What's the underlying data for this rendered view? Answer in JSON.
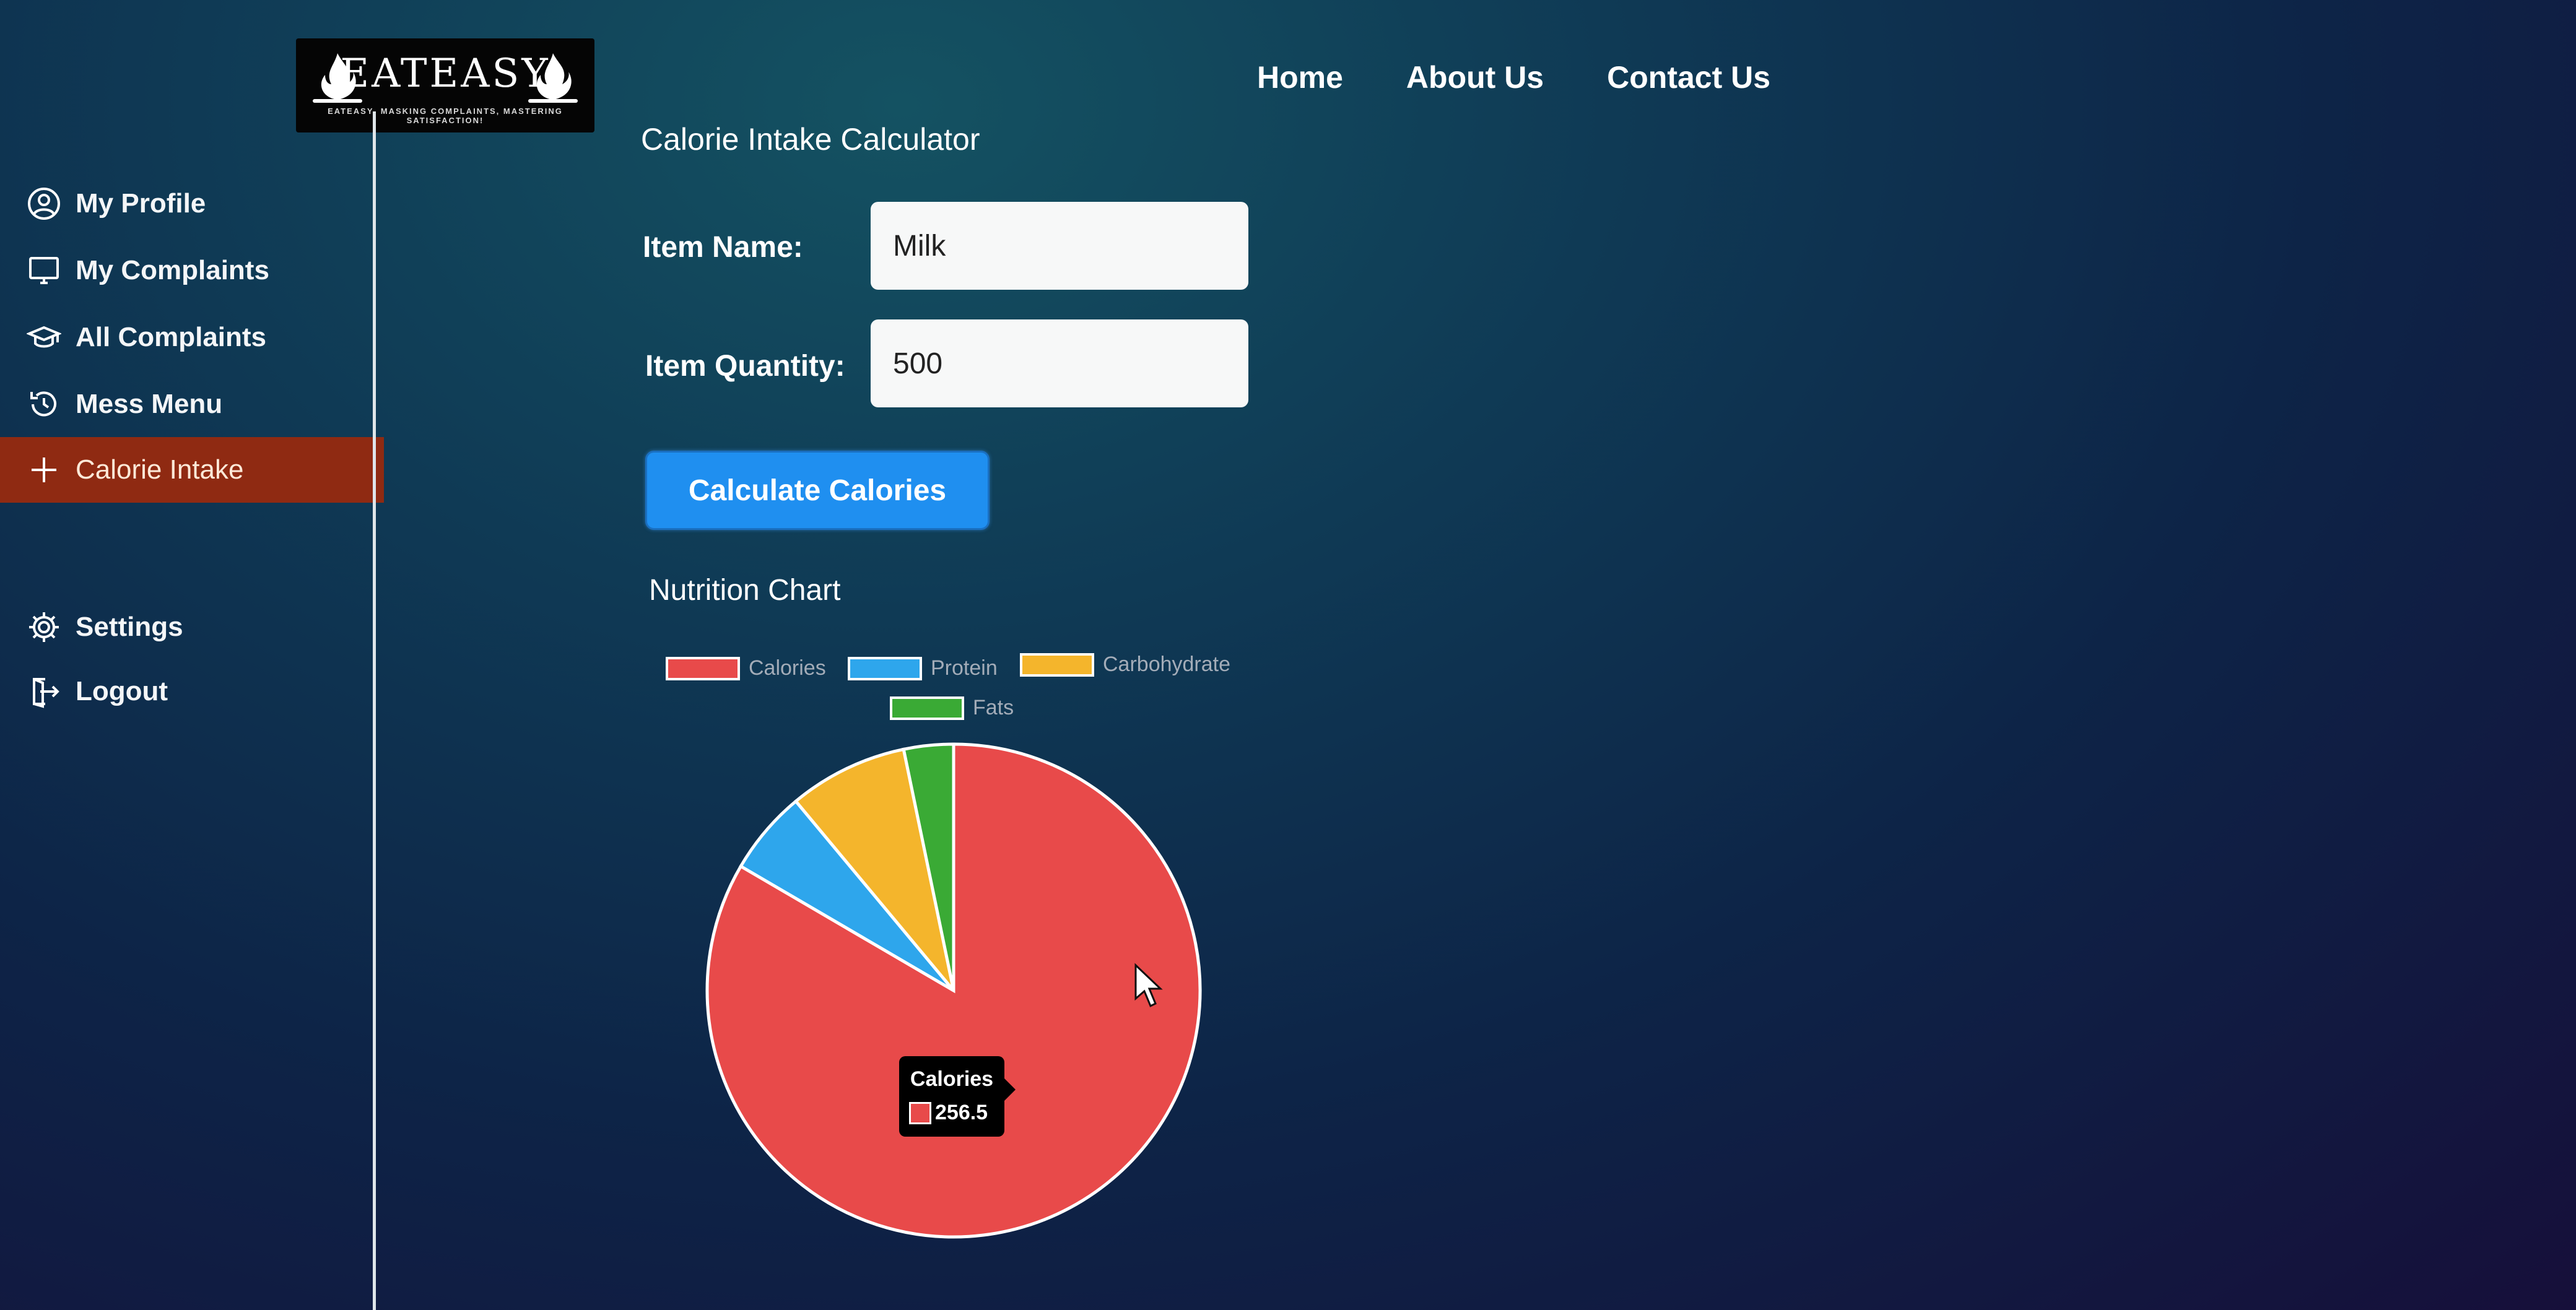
{
  "logo": {
    "text": "EATEASY",
    "tagline": "EATEASY- MASKING COMPLAINTS, MASTERING SATISFACTION!"
  },
  "sidebar": {
    "items": [
      {
        "label": "My Profile",
        "icon": "user-circle-icon"
      },
      {
        "label": "My Complaints",
        "icon": "monitor-icon"
      },
      {
        "label": "All Complaints",
        "icon": "graduation-cap-icon"
      },
      {
        "label": "Mess Menu",
        "icon": "history-icon"
      },
      {
        "label": "Calorie Intake",
        "icon": "plus-icon",
        "active": true
      },
      {
        "label": "Settings",
        "icon": "gear-icon"
      },
      {
        "label": "Logout",
        "icon": "logout-icon"
      }
    ]
  },
  "nav": {
    "home": "Home",
    "about": "About Us",
    "contact": "Contact Us"
  },
  "main": {
    "title": "Calorie Intake Calculator",
    "item_name_label": "Item Name:",
    "item_name_value": "Milk",
    "item_quantity_label": "Item Quantity:",
    "item_quantity_value": "500",
    "calculate_button": "Calculate Calories",
    "chart_title": "Nutrition Chart"
  },
  "tooltip": {
    "title": "Calories",
    "value": "256.5"
  },
  "colors": {
    "calories": "#e84a4a",
    "protein": "#2ea6ec",
    "carbohydrate": "#f4b52c",
    "fats": "#3aaa35",
    "active_menu": "#8f2a12",
    "button": "#1f8ff0"
  },
  "chart_data": {
    "type": "pie",
    "title": "Nutrition Chart",
    "categories": [
      "Calories",
      "Protein",
      "Carbohydrate",
      "Fats"
    ],
    "values": [
      256.5,
      17,
      24,
      10
    ],
    "colors": [
      "#e84a4a",
      "#2ea6ec",
      "#f4b52c",
      "#3aaa35"
    ],
    "legend_position": "top"
  }
}
